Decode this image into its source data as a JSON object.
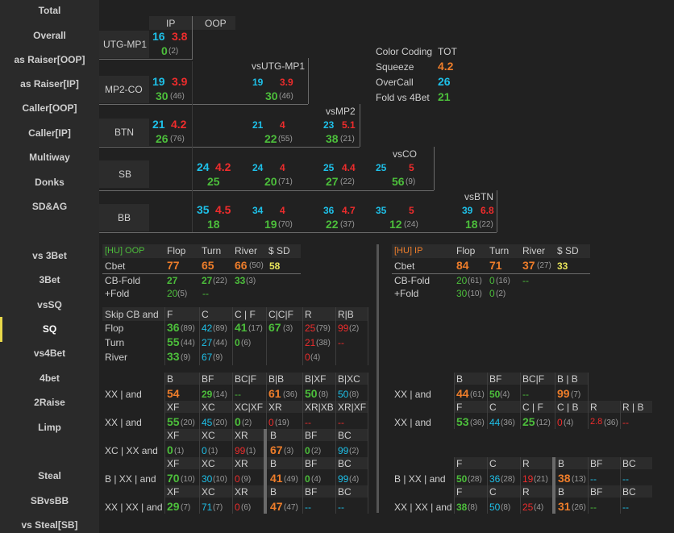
{
  "sidebar": {
    "items": [
      "Total",
      "Overall",
      "as Raiser[OOP]",
      "as Raiser[IP]",
      "Caller[OOP]",
      "Caller[IP]",
      "Multiway",
      "Donks",
      "SD&AG",
      "vs 3Bet",
      "3Bet",
      "vsSQ",
      "SQ",
      "vs4Bet",
      "4bet",
      "2Raise",
      "Limp",
      "Steal",
      "SBvsBB",
      "vs Steal[SB]"
    ],
    "active": "SQ"
  },
  "colors": {
    "cyan": "#1ec0e8",
    "red": "#ee2c2c",
    "green": "#4cbe3b",
    "orange": "#ee7d2a",
    "yellow": "#e8e45a"
  },
  "matrix": {
    "header_ip": "IP",
    "header_oop": "OOP",
    "rows": [
      "UTG-MP1",
      "MP2-CO",
      "BTN",
      "SB",
      "BB"
    ],
    "vs_labels": [
      "vsUTG-MP1",
      "vsMP2",
      "vsCO",
      "vsBTN"
    ],
    "cells": {
      "utg_ip": {
        "a": "16",
        "b": "3.8",
        "c": "0",
        "n": "(2)"
      },
      "mp2_ip": {
        "a": "19",
        "b": "3.9",
        "c": "30",
        "n": "(46)"
      },
      "mp2_v1": {
        "a": "19",
        "b": "3.9",
        "c": "30",
        "n": "(46)"
      },
      "btn_ip": {
        "a": "21",
        "b": "4.2",
        "c": "26",
        "n": "(76)"
      },
      "btn_v1": {
        "a": "21",
        "b": "4",
        "c": "22",
        "n": "(55)"
      },
      "btn_v2": {
        "a": "23",
        "b": "5.1",
        "c": "38",
        "n": "(21)"
      },
      "sb_oop": {
        "a": "24",
        "b": "4.2",
        "c": "25",
        "n": ""
      },
      "sb_v1": {
        "a": "24",
        "b": "4",
        "c": "20",
        "n": "(71)"
      },
      "sb_v2": {
        "a": "25",
        "b": "4.4",
        "c": "27",
        "n": "(22)"
      },
      "sb_v3": {
        "a": "25",
        "b": "5",
        "c": "56",
        "n": "(9)"
      },
      "bb_oop": {
        "a": "35",
        "b": "4.5",
        "c": "18",
        "n": ""
      },
      "bb_v1": {
        "a": "34",
        "b": "4",
        "c": "19",
        "n": "(70)"
      },
      "bb_v2": {
        "a": "36",
        "b": "4.7",
        "c": "22",
        "n": "(37)"
      },
      "bb_v3": {
        "a": "35",
        "b": "5",
        "c": "12",
        "n": "(24)"
      },
      "bb_v4": {
        "a": "39",
        "b": "6.8",
        "c": "18",
        "n": "(22)"
      }
    }
  },
  "legend": {
    "title": "Color Coding",
    "tot": "TOT",
    "rows": [
      {
        "label": "Squeeze",
        "value": "4.2"
      },
      {
        "label": "OverCall",
        "value": "26"
      },
      {
        "label": "Fold vs 4Bet",
        "value": "21"
      }
    ]
  },
  "hu_oop": {
    "title": "[HU] OOP",
    "cols": [
      "Flop",
      "Turn",
      "River",
      "$ SD"
    ],
    "cbet_label": "Cbet",
    "cbet": [
      "77",
      "65",
      "66",
      "(50)",
      "58"
    ],
    "cbf_label": "CB-Fold",
    "cbf": [
      "27",
      "27",
      "(22)",
      "33",
      "(3)"
    ],
    "pf_label": "+Fold",
    "pf": [
      "20",
      "(5)",
      "--"
    ]
  },
  "hu_ip": {
    "title": "[HU] IP",
    "cols": [
      "Flop",
      "Turn",
      "River",
      "$ SD"
    ],
    "cbet_label": "Cbet",
    "cbet": [
      "84",
      "71",
      "37",
      "(27)",
      "33"
    ],
    "cbf_label": "CB-Fold",
    "cbf": [
      "20",
      "(61)",
      "0",
      "(16)",
      "--"
    ],
    "pf_label": "+Fold",
    "pf": [
      "30",
      "(10)",
      "0",
      "(2)"
    ]
  },
  "skip": {
    "title": "Skip CB and",
    "cols": [
      "F",
      "C",
      "C | F",
      "C|C|F",
      "R",
      "R|B"
    ],
    "rows": [
      {
        "label": "Flop",
        "v": [
          "36",
          "(89)",
          "42",
          "(89)",
          "41",
          "(17)",
          "67",
          "(3)",
          "25",
          "(79)",
          "99",
          "(2)"
        ]
      },
      {
        "label": "Turn",
        "v": [
          "55",
          "(44)",
          "27",
          "(44)",
          "0",
          "(6)",
          "",
          "",
          "21",
          "(38)",
          "--",
          ""
        ]
      },
      {
        "label": "River",
        "v": [
          "33",
          "(9)",
          "67",
          "(9)",
          "",
          "",
          "",
          "",
          "0",
          "(4)",
          "",
          ""
        ]
      }
    ]
  },
  "lines_oop": {
    "r1": {
      "label": "XX | and",
      "h": [
        "B",
        "BF",
        "BC|F",
        "B|B",
        "B|XF",
        "B|XC"
      ],
      "v": [
        "54",
        "",
        "29",
        "(14)",
        "--",
        "",
        "61",
        "(36)",
        "50",
        "(8)",
        "50",
        "(8)"
      ]
    },
    "r2": {
      "label": "XX | and",
      "h": [
        "XF",
        "XC",
        "XC|XF",
        "XR",
        "XR|XB",
        "XR|XF"
      ],
      "v": [
        "55",
        "(20)",
        "45",
        "(20)",
        "0",
        "(2)",
        "0",
        "(19)",
        "--",
        "",
        "--",
        ""
      ]
    },
    "r3": {
      "label": "XC | XX and",
      "h": [
        "XF",
        "XC",
        "XR",
        "B",
        "BF",
        "BC"
      ],
      "v": [
        "0",
        "(1)",
        "0",
        "(1)",
        "99",
        "(1)",
        "67",
        "(3)",
        "0",
        "(2)",
        "99",
        "(2)"
      ]
    },
    "r4": {
      "label": "B | XX | and",
      "h": [
        "XF",
        "XC",
        "XR",
        "B",
        "BF",
        "BC"
      ],
      "v": [
        "70",
        "(10)",
        "30",
        "(10)",
        "0",
        "(9)",
        "41",
        "(49)",
        "0",
        "(4)",
        "99",
        "(4)"
      ]
    },
    "r5": {
      "label": "XX | XX | and",
      "h": [
        "XF",
        "XC",
        "XR",
        "B",
        "BF",
        "BC"
      ],
      "v": [
        "29",
        "(7)",
        "71",
        "(7)",
        "0",
        "(6)",
        "47",
        "(47)",
        "--",
        "",
        "--",
        ""
      ]
    }
  },
  "lines_ip": {
    "r1": {
      "label": "XX | and",
      "h": [
        "B",
        "BF",
        "BC|F",
        "B | B"
      ],
      "v": [
        "44",
        "(61)",
        "50",
        "(4)",
        "--",
        "",
        "99",
        "(7)"
      ]
    },
    "r2": {
      "label": "XX | and",
      "h": [
        "F",
        "C",
        "C | F",
        "C | B",
        "R",
        "R | B"
      ],
      "v": [
        "53",
        "(36)",
        "44",
        "(36)",
        "25",
        "(12)",
        "0",
        "(4)",
        "2.8",
        "(36)",
        "--",
        ""
      ]
    },
    "r4": {
      "label": "B | XX | and",
      "h": [
        "F",
        "C",
        "R",
        "B",
        "BF",
        "BC"
      ],
      "v": [
        "50",
        "(28)",
        "36",
        "(28)",
        "19",
        "(21)",
        "38",
        "(13)",
        "--",
        "",
        "--",
        ""
      ]
    },
    "r5": {
      "label": "XX | XX | and",
      "h": [
        "F",
        "C",
        "R",
        "B",
        "BF",
        "BC"
      ],
      "v": [
        "38",
        "(8)",
        "50",
        "(8)",
        "25",
        "(4)",
        "31",
        "(26)",
        "--",
        "",
        "--",
        ""
      ]
    }
  }
}
